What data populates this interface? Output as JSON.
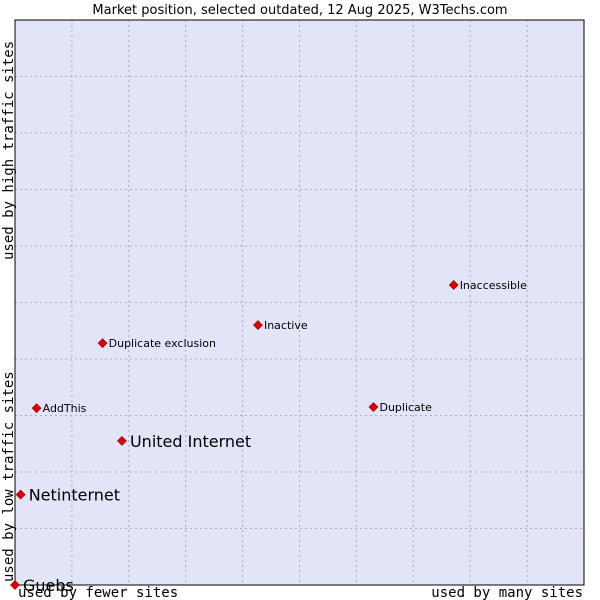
{
  "chart_data": {
    "type": "scatter",
    "title": "Market position, selected outdated, 12 Aug 2025, W3Techs.com",
    "xlabel_left": "used by fewer sites",
    "xlabel_right": "used by many sites",
    "ylabel_bottom": "used by low traffic sites",
    "ylabel_top": "used by high traffic sites",
    "xlim": [
      0,
      100
    ],
    "ylim": [
      0,
      100
    ],
    "grid": true,
    "colors": {
      "plot_background": "#e2e4f8",
      "grid": "#a9abc7",
      "marker": "#e00000",
      "border": "#000000"
    },
    "points": [
      {
        "name": "Inaccessible",
        "x": 77.1,
        "y": 53.1,
        "emphasis": false
      },
      {
        "name": "Inactive",
        "x": 42.7,
        "y": 46.0,
        "emphasis": false
      },
      {
        "name": "Duplicate exclusion",
        "x": 15.4,
        "y": 42.8,
        "emphasis": false
      },
      {
        "name": "AddThis",
        "x": 3.8,
        "y": 31.3,
        "emphasis": false
      },
      {
        "name": "Duplicate",
        "x": 63.0,
        "y": 31.5,
        "emphasis": false
      },
      {
        "name": "United Internet",
        "x": 18.8,
        "y": 25.5,
        "emphasis": true
      },
      {
        "name": "Netinternet",
        "x": 1.0,
        "y": 16.0,
        "emphasis": true
      },
      {
        "name": "Guebs",
        "x": 0.0,
        "y": 0.0,
        "emphasis": true
      }
    ]
  }
}
